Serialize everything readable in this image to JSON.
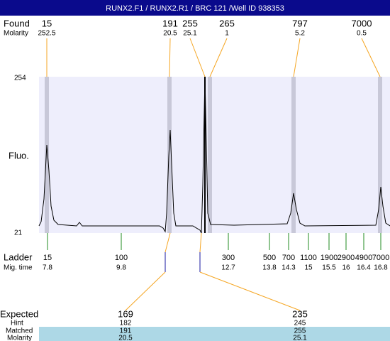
{
  "title": "RUNX2.F1 / RUNX2.R1 / BRC 121 /Well ID 938353",
  "found": {
    "label": "Found",
    "molarity_label": "Molarity",
    "peaks": [
      {
        "size": 15,
        "molarity": 252.5
      },
      {
        "size": 191,
        "molarity": 20.5
      },
      {
        "size": 255,
        "molarity": 25.1
      },
      {
        "size": 265,
        "molarity": 1
      },
      {
        "size": 797,
        "molarity": 5.2
      },
      {
        "size": 7000,
        "molarity": 0.5
      }
    ]
  },
  "plot": {
    "y_top": 254,
    "y_bottom": 21,
    "y_label": "Fluo."
  },
  "ladder": {
    "label": "Ladder",
    "mig_time_label": "Mig. time",
    "peaks": [
      {
        "size": 15,
        "mig_time": 7.8
      },
      {
        "size": 100,
        "mig_time": 9.8
      },
      {
        "size": 300,
        "mig_time": 12.7
      },
      {
        "size": 500,
        "mig_time": 13.8
      },
      {
        "size": 700,
        "mig_time": 14.3
      },
      {
        "size": 1100,
        "mig_time": 15
      },
      {
        "size": 1900,
        "mig_time": 15.5
      },
      {
        "size": 2900,
        "mig_time": 16
      },
      {
        "size": 4900,
        "mig_time": 16.4
      },
      {
        "size": 7000,
        "mig_time": 16.8
      }
    ]
  },
  "expected": {
    "label": "Expected",
    "hint_label": "Hint",
    "matched_label": "Matched",
    "molarity_label": "Molarity",
    "peaks": [
      {
        "expected": 169,
        "hint": 182,
        "matched": 191,
        "molarity": 20.5
      },
      {
        "expected": 235,
        "hint": 245,
        "matched": 255,
        "molarity": 25.1
      }
    ]
  }
}
